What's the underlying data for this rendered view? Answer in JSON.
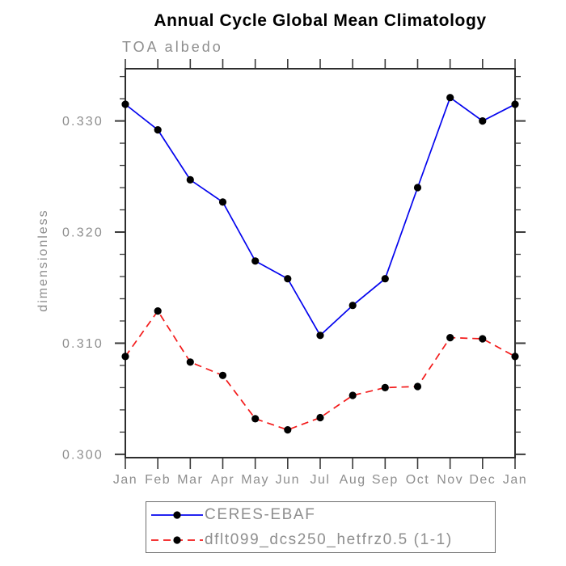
{
  "chart_data": {
    "type": "line",
    "title": "Annual Cycle Global Mean Climatology",
    "subtitle": "TOA albedo",
    "xlabel": "",
    "ylabel": "dimensionless",
    "categories": [
      "Jan",
      "Feb",
      "Mar",
      "Apr",
      "May",
      "Jun",
      "Jul",
      "Aug",
      "Sep",
      "Oct",
      "Nov",
      "Dec",
      "Jan"
    ],
    "series": [
      {
        "name": "CERES-EBAF",
        "line_style": "solid",
        "line_color": "#0404ee",
        "marker": "filled-circle",
        "marker_color": "#000000",
        "values": [
          0.3315,
          0.3292,
          0.3247,
          0.3227,
          0.3174,
          0.3158,
          0.3107,
          0.3134,
          0.3158,
          0.324,
          0.3321,
          0.33,
          0.3315
        ]
      },
      {
        "name": "dflt099_dcs250_hetfrz0.5 (1-1)",
        "line_style": "dashed",
        "line_color": "#f31a1a",
        "marker": "filled-circle",
        "marker_color": "#000000",
        "values": [
          0.3088,
          0.3129,
          0.3083,
          0.3071,
          0.3032,
          0.3022,
          0.3033,
          0.3053,
          0.306,
          0.3061,
          0.3105,
          0.3104,
          0.3088
        ]
      }
    ],
    "ylim": [
      0.2997,
      0.3347
    ],
    "ytick_values": [
      0.3,
      0.31,
      0.32,
      0.33
    ],
    "ytick_labels": [
      "0.300",
      "0.310",
      "0.320",
      "0.330"
    ],
    "y_minor_interval": 0.002,
    "grid": false,
    "legend_position": "bottom-left"
  },
  "colors": {
    "axis": "#2e2e2e",
    "tick": "#3a3a3a",
    "label_gray": "#8e8e8e",
    "title_black": "#000000",
    "legend_border": "#6e6e6e",
    "background": "#ffffff"
  }
}
